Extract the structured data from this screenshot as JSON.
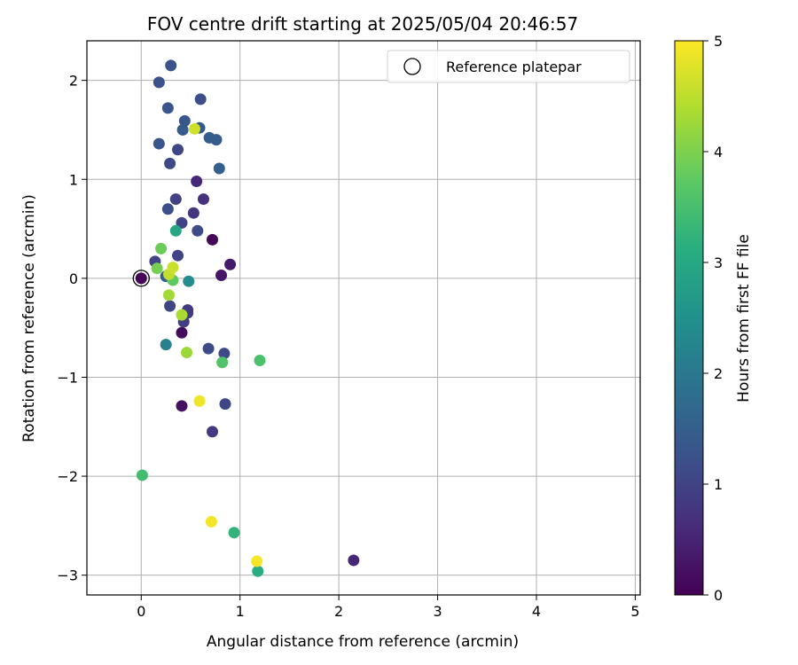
{
  "chart_data": {
    "type": "scatter",
    "title": "FOV centre drift starting at 2025/05/04 20:46:57",
    "xlabel": "Angular distance from reference (arcmin)",
    "ylabel": "Rotation from reference (arcmin)",
    "xlim": [
      -0.55,
      5.05
    ],
    "ylim": [
      -3.2,
      2.4
    ],
    "xticks": [
      0,
      1,
      2,
      3,
      4,
      5
    ],
    "yticks": [
      2,
      1,
      0,
      -1,
      -2,
      -3
    ],
    "xtick_labels": [
      "0",
      "1",
      "2",
      "3",
      "4",
      "5"
    ],
    "ytick_labels": [
      "2",
      "1",
      "0",
      "−1",
      "−2",
      "−3"
    ],
    "grid": true,
    "legend": {
      "placement": "top-right",
      "entries": [
        "Reference platepar"
      ]
    },
    "colorbar": {
      "label": "Hours from first FF file",
      "range": [
        0,
        5
      ],
      "ticks": [
        0,
        1,
        2,
        3,
        4,
        5
      ],
      "tick_labels": [
        "0",
        "1",
        "2",
        "3",
        "4",
        "5"
      ],
      "colormap": "viridis"
    },
    "reference": {
      "x": 0,
      "y": 0
    },
    "points": [
      {
        "x": 0.0,
        "y": 0.0,
        "c": 0.05
      },
      {
        "x": 0.72,
        "y": 0.39,
        "c": 0.1
      },
      {
        "x": 0.41,
        "y": -0.55,
        "c": 0.15
      },
      {
        "x": 0.41,
        "y": -1.29,
        "c": 0.2
      },
      {
        "x": 0.81,
        "y": 0.03,
        "c": 0.3
      },
      {
        "x": 0.9,
        "y": 0.14,
        "c": 0.35
      },
      {
        "x": 2.15,
        "y": -2.85,
        "c": 0.55
      },
      {
        "x": 0.56,
        "y": 0.98,
        "c": 0.55
      },
      {
        "x": 0.63,
        "y": 0.8,
        "c": 0.7
      },
      {
        "x": 0.53,
        "y": 0.66,
        "c": 0.75
      },
      {
        "x": 0.72,
        "y": -1.55,
        "c": 0.85
      },
      {
        "x": 0.47,
        "y": -0.35,
        "c": 0.8
      },
      {
        "x": 0.47,
        "y": -0.32,
        "c": 0.85
      },
      {
        "x": 0.43,
        "y": -0.44,
        "c": 0.9
      },
      {
        "x": 0.35,
        "y": 0.8,
        "c": 0.95
      },
      {
        "x": 0.41,
        "y": 0.56,
        "c": 1.0
      },
      {
        "x": 0.37,
        "y": 0.23,
        "c": 1.0
      },
      {
        "x": 0.14,
        "y": 0.17,
        "c": 1.0
      },
      {
        "x": 0.29,
        "y": -0.28,
        "c": 1.05
      },
      {
        "x": 0.37,
        "y": 1.3,
        "c": 1.05
      },
      {
        "x": 0.29,
        "y": 1.16,
        "c": 1.1
      },
      {
        "x": 0.85,
        "y": -1.27,
        "c": 1.05
      },
      {
        "x": 0.84,
        "y": -0.76,
        "c": 1.1
      },
      {
        "x": 0.68,
        "y": -0.71,
        "c": 1.15
      },
      {
        "x": 0.57,
        "y": 0.48,
        "c": 1.15
      },
      {
        "x": 0.27,
        "y": 0.7,
        "c": 1.2
      },
      {
        "x": 0.6,
        "y": 1.81,
        "c": 1.2
      },
      {
        "x": 0.3,
        "y": 2.15,
        "c": 1.25
      },
      {
        "x": 0.18,
        "y": 1.98,
        "c": 1.25
      },
      {
        "x": 0.18,
        "y": 1.36,
        "c": 1.3
      },
      {
        "x": 0.27,
        "y": 1.72,
        "c": 1.3
      },
      {
        "x": 0.44,
        "y": 1.59,
        "c": 1.35
      },
      {
        "x": 0.42,
        "y": 1.5,
        "c": 1.4
      },
      {
        "x": 0.59,
        "y": 1.52,
        "c": 1.4
      },
      {
        "x": 0.69,
        "y": 1.42,
        "c": 1.45
      },
      {
        "x": 0.76,
        "y": 1.4,
        "c": 1.45
      },
      {
        "x": 0.79,
        "y": 1.11,
        "c": 1.5
      },
      {
        "x": 0.25,
        "y": 0.02,
        "c": 1.55
      },
      {
        "x": 0.25,
        "y": -0.67,
        "c": 2.15
      },
      {
        "x": 0.48,
        "y": -0.03,
        "c": 2.4
      },
      {
        "x": 0.35,
        "y": 0.48,
        "c": 2.95
      },
      {
        "x": 1.18,
        "y": -2.96,
        "c": 3.1
      },
      {
        "x": 0.94,
        "y": -2.57,
        "c": 3.25
      },
      {
        "x": 0.01,
        "y": -1.99,
        "c": 3.45
      },
      {
        "x": 1.2,
        "y": -0.83,
        "c": 3.55
      },
      {
        "x": 0.82,
        "y": -0.85,
        "c": 3.6
      },
      {
        "x": 0.32,
        "y": -0.02,
        "c": 3.75
      },
      {
        "x": 0.2,
        "y": 0.3,
        "c": 3.85
      },
      {
        "x": 0.16,
        "y": 0.1,
        "c": 3.95
      },
      {
        "x": 0.46,
        "y": -0.75,
        "c": 4.25
      },
      {
        "x": 0.28,
        "y": -0.17,
        "c": 4.3
      },
      {
        "x": 0.41,
        "y": -0.37,
        "c": 4.35
      },
      {
        "x": 0.28,
        "y": 0.04,
        "c": 4.55
      },
      {
        "x": 0.32,
        "y": 0.11,
        "c": 4.6
      },
      {
        "x": 0.54,
        "y": 1.51,
        "c": 4.65
      },
      {
        "x": 0.59,
        "y": -1.24,
        "c": 4.9
      },
      {
        "x": 0.71,
        "y": -2.46,
        "c": 4.92
      },
      {
        "x": 1.17,
        "y": -2.86,
        "c": 4.95
      }
    ]
  }
}
